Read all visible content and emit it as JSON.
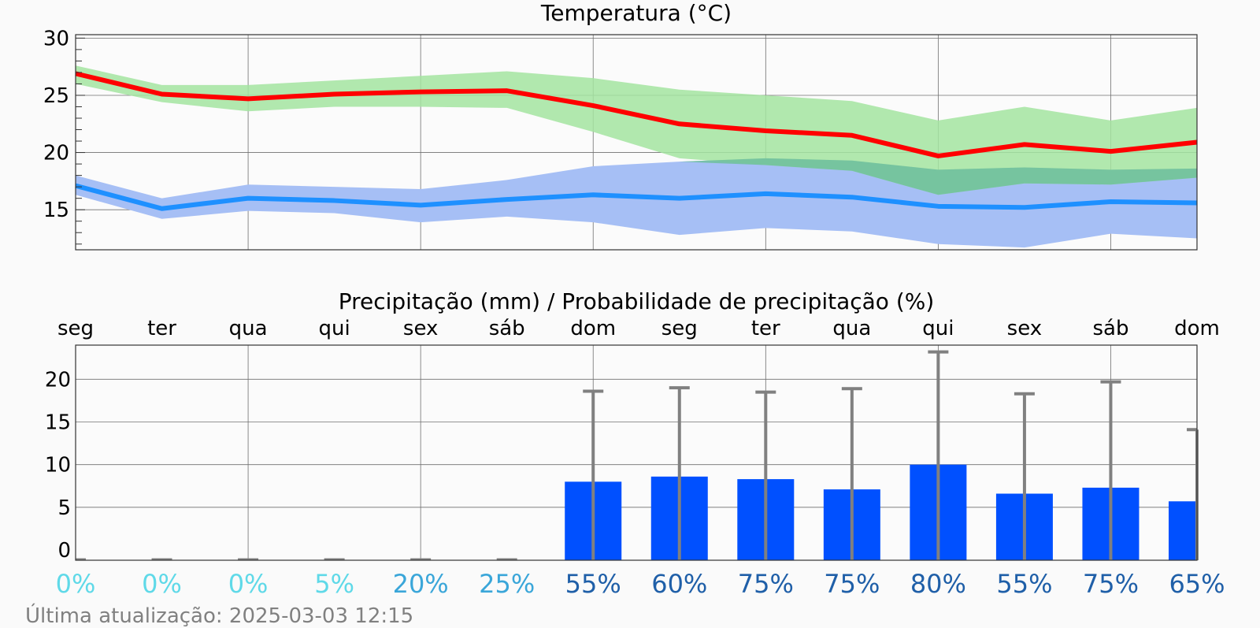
{
  "chart_data": [
    {
      "type": "line",
      "title": "Temperatura (°C)",
      "ylim": [
        11.5,
        30.3
      ],
      "yticks": [
        15,
        20,
        25,
        30
      ],
      "x_count": 14,
      "series": [
        {
          "role": "max",
          "color": "#ff0000",
          "values": [
            26.9,
            25.1,
            24.7,
            25.1,
            25.3,
            25.4,
            24.1,
            22.5,
            21.9,
            21.5,
            19.7,
            20.7,
            20.1,
            20.9
          ],
          "band_low": [
            26.0,
            24.4,
            23.6,
            24.0,
            24.0,
            23.9,
            21.8,
            19.5,
            18.9,
            18.4,
            16.3,
            17.3,
            17.2,
            17.8
          ],
          "band_high": [
            27.6,
            25.9,
            25.9,
            26.3,
            26.7,
            27.1,
            26.5,
            25.5,
            25.0,
            24.5,
            22.8,
            24.0,
            22.8,
            23.9
          ],
          "band_color": "#a3e4a0"
        },
        {
          "role": "min",
          "color": "#1e90ff",
          "values": [
            17.1,
            15.1,
            16.0,
            15.8,
            15.4,
            15.9,
            16.3,
            16.0,
            16.4,
            16.1,
            15.3,
            15.2,
            15.7,
            15.6
          ],
          "band_low": [
            16.3,
            14.2,
            14.9,
            14.7,
            13.9,
            14.4,
            13.9,
            12.8,
            13.4,
            13.1,
            12.0,
            11.7,
            12.9,
            12.5
          ],
          "band_high": [
            18.0,
            16.0,
            17.2,
            17.0,
            16.8,
            17.6,
            18.8,
            19.2,
            19.5,
            19.3,
            18.5,
            18.7,
            18.5,
            18.6
          ],
          "band_color": "#a6bff5"
        }
      ]
    },
    {
      "type": "bar",
      "title": "Precipitação (mm) / Probabilidade de precipitação (%)",
      "categories": [
        "seg",
        "ter",
        "qua",
        "qui",
        "sex",
        "sáb",
        "dom",
        "seg",
        "ter",
        "qua",
        "qui",
        "sex",
        "sáb",
        "dom"
      ],
      "ylim": [
        -1.2,
        24
      ],
      "yticks": [
        0,
        5,
        10,
        15,
        20
      ],
      "bar_color": "#0050ff",
      "errorbar_color": "#808080",
      "values": [
        0,
        0,
        0,
        0,
        0,
        0,
        8.0,
        8.6,
        8.3,
        7.1,
        10.0,
        6.6,
        7.3,
        5.7
      ],
      "error_upper": [
        0,
        0,
        0,
        0,
        0,
        0,
        18.6,
        19.0,
        18.5,
        18.9,
        23.2,
        18.3,
        19.7,
        14.1
      ],
      "probabilities": [
        "0%",
        "0%",
        "0%",
        "5%",
        "20%",
        "25%",
        "55%",
        "60%",
        "75%",
        "75%",
        "80%",
        "55%",
        "75%",
        "65%"
      ],
      "probability_colors": [
        "#5fd9e8",
        "#5fd9e8",
        "#5fd9e8",
        "#5fd9e8",
        "#3aa6d9",
        "#3aa6d9",
        "#1f5fa8",
        "#1f5fa8",
        "#1f5fa8",
        "#1f5fa8",
        "#1f5fa8",
        "#1f5fa8",
        "#1f5fa8",
        "#1f5fa8"
      ]
    }
  ],
  "footer": {
    "last_update": "Última atualização: 2025-03-03 12:15"
  }
}
